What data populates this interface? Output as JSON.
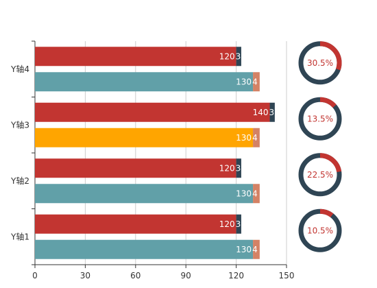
{
  "chart_data": {
    "type": "bar",
    "orientation": "horizontal",
    "stacked": true,
    "categories": [
      "Y轴1",
      "Y轴2",
      "Y轴3",
      "Y轴4"
    ],
    "xlim": [
      0,
      150
    ],
    "x_ticks": [
      0,
      30,
      60,
      90,
      120,
      150
    ],
    "grid": true,
    "legend": "none",
    "groups": [
      {
        "segments": [
          {
            "values": [
              120,
              120,
              140,
              120
            ],
            "color": "#c23531",
            "labels": [
              "120",
              "120",
              "140",
              "120"
            ]
          },
          {
            "values": [
              3,
              3,
              3,
              3
            ],
            "color": "#2f4554",
            "labels": [
              "3",
              "3",
              "3",
              "3"
            ]
          }
        ]
      },
      {
        "segments": [
          {
            "values": [
              130,
              130,
              130,
              130
            ],
            "colors": [
              "#61a0a8",
              "#61a0a8",
              "#ffa500",
              "#61a0a8"
            ],
            "labels": [
              "130",
              "130",
              "130",
              "130"
            ]
          },
          {
            "values": [
              4,
              4,
              4,
              4
            ],
            "color": "#d48265",
            "labels": [
              "4",
              "4",
              "4",
              "4"
            ]
          }
        ]
      }
    ],
    "donuts": [
      {
        "category": "Y轴1",
        "label": "10.5%",
        "value": 10.5
      },
      {
        "category": "Y轴2",
        "label": "22.5%",
        "value": 22.5
      },
      {
        "category": "Y轴3",
        "label": "13.5%",
        "value": 13.5
      },
      {
        "category": "Y轴4",
        "label": "30.5%",
        "value": 30.5
      }
    ],
    "donut_colors": {
      "highlight": "#c23531",
      "rest": "#2f4554"
    },
    "axis_color": "#333333",
    "grid_color": "#cccccc"
  }
}
